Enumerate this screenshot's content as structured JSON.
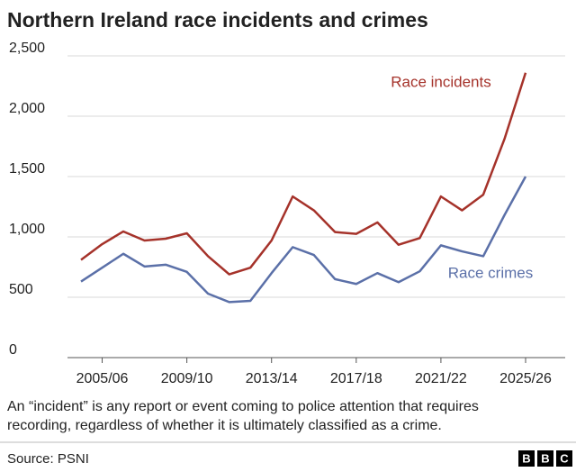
{
  "chart_data": {
    "type": "line",
    "title": "Northern Ireland race incidents and crimes",
    "categories": [
      null,
      "2005/06",
      null,
      null,
      null,
      "2009/10",
      null,
      null,
      null,
      "2013/14",
      null,
      null,
      null,
      "2017/18",
      null,
      null,
      null,
      "2021/22",
      null,
      null,
      null,
      "2025/26"
    ],
    "series": [
      {
        "name": "Race incidents",
        "color": "#a5322a",
        "values": [
          810,
          940,
          1045,
          970,
          985,
          1030,
          840,
          690,
          745,
          970,
          1335,
          1220,
          1040,
          1025,
          1120,
          935,
          990,
          1335,
          1220,
          1350,
          1810,
          2360
        ]
      },
      {
        "name": "Race crimes",
        "color": "#5b70a8",
        "values": [
          630,
          745,
          860,
          755,
          770,
          710,
          530,
          460,
          470,
          700,
          915,
          850,
          650,
          610,
          700,
          625,
          715,
          930,
          880,
          840,
          1180,
          1500
        ]
      }
    ],
    "ylim": [
      0,
      2500
    ],
    "yticks": [
      0,
      500,
      {
        "value": 1000,
        "label": "1,000"
      },
      {
        "value": 1500,
        "label": "1,500"
      },
      {
        "value": 2000,
        "label": "2,000"
      },
      {
        "value": 2500,
        "label": "2,500"
      }
    ],
    "grid": true,
    "note": [
      "An “incident” is any report or event coming to police attention that requires",
      "recording, regardless of whether it is ultimately classified as a crime."
    ],
    "source": "Source: PSNI",
    "logo": [
      "B",
      "B",
      "C"
    ]
  }
}
